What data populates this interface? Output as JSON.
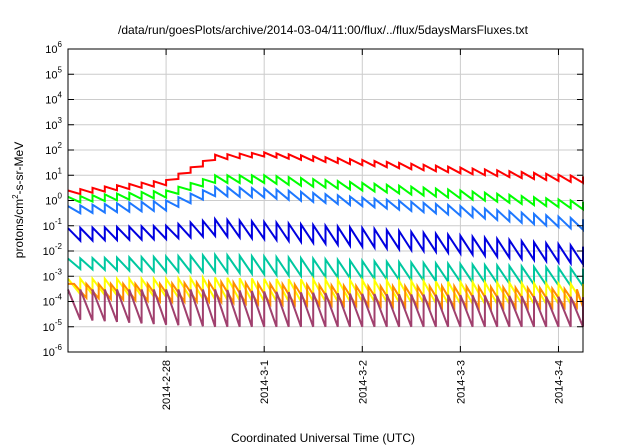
{
  "chart_data": {
    "type": "line",
    "title": "/data/run/goesPlots/archive/2014-03-04/11:00/flux/../flux/5daysMarsFluxes.txt",
    "xlabel": "Coordinated Universal Time (UTC)",
    "ylabel_parts": [
      "protons/cm",
      "2",
      "-s-sr-MeV"
    ],
    "y_scale": "log",
    "ylim": [
      1e-06,
      1000000.0
    ],
    "xlim": [
      "2014-02-27 00:00",
      "2014-03-04 06:00"
    ],
    "x_ticks": [
      {
        "label": "2014-2-28",
        "value": "2014-02-28"
      },
      {
        "label": "2014-3-1",
        "value": "2014-03-01"
      },
      {
        "label": "2014-3-2",
        "value": "2014-03-02"
      },
      {
        "label": "2014-3-3",
        "value": "2014-03-03"
      },
      {
        "label": "2014-3-4",
        "value": "2014-03-04"
      }
    ],
    "y_ticks": [
      {
        "base": "10",
        "exp": "-6",
        "value": 1e-06
      },
      {
        "base": "10",
        "exp": "-5",
        "value": 1e-05
      },
      {
        "base": "10",
        "exp": "-4",
        "value": 0.0001
      },
      {
        "base": "10",
        "exp": "-3",
        "value": 0.001
      },
      {
        "base": "10",
        "exp": "-2",
        "value": 0.01
      },
      {
        "base": "10",
        "exp": "-1",
        "value": 0.1
      },
      {
        "base": "10",
        "exp": "0",
        "value": 1
      },
      {
        "base": "10",
        "exp": "1",
        "value": 10
      },
      {
        "base": "10",
        "exp": "2",
        "value": 100
      },
      {
        "base": "10",
        "exp": "3",
        "value": 1000
      },
      {
        "base": "10",
        "exp": "4",
        "value": 10000
      },
      {
        "base": "10",
        "exp": "5",
        "value": 100000
      },
      {
        "base": "10",
        "exp": "6",
        "value": 1000000
      }
    ],
    "grid": true,
    "legend": "none",
    "series": [
      {
        "color": "#ff0000",
        "sawtooth_start": "2014-02-27 00:00",
        "sawtooth_period_hours": 3,
        "envelope": [
          [
            "2014-02-27 00:00",
            1.6,
            2.5
          ],
          [
            "2014-02-28 00:00",
            4,
            6.5
          ],
          [
            "2014-02-28 12:00",
            40,
            65
          ],
          [
            "2014-03-01 00:00",
            55,
            80
          ],
          [
            "2014-03-02 00:00",
            25,
            40
          ],
          [
            "2014-03-03 00:00",
            12,
            20
          ],
          [
            "2014-03-04 06:00",
            5,
            9
          ]
        ]
      },
      {
        "color": "#00ff00",
        "sawtooth_start": "2014-02-27 00:00",
        "sawtooth_period_hours": 3,
        "envelope": [
          [
            "2014-02-27 00:00",
            0.8,
            1.4
          ],
          [
            "2014-02-28 00:00",
            1.3,
            2.5
          ],
          [
            "2014-02-28 12:00",
            5,
            10
          ],
          [
            "2014-03-01 00:00",
            5,
            10
          ],
          [
            "2014-03-02 00:00",
            2.5,
            5
          ],
          [
            "2014-03-03 00:00",
            1.2,
            2.5
          ],
          [
            "2014-03-04 06:00",
            0.45,
            0.9
          ]
        ]
      },
      {
        "color": "#1e78ff",
        "sawtooth_start": "2014-02-27 00:00",
        "sawtooth_period_hours": 3,
        "envelope": [
          [
            "2014-02-27 00:00",
            0.3,
            0.6
          ],
          [
            "2014-02-28 00:00",
            0.4,
            1.0
          ],
          [
            "2014-02-28 12:00",
            1.5,
            3.5
          ],
          [
            "2014-03-01 00:00",
            1.3,
            3.0
          ],
          [
            "2014-03-02 00:00",
            0.6,
            1.3
          ],
          [
            "2014-03-03 00:00",
            0.25,
            0.6
          ],
          [
            "2014-03-04 06:00",
            0.07,
            0.18
          ]
        ]
      },
      {
        "color": "#0000e0",
        "sawtooth_start": "2014-02-27 00:00",
        "sawtooth_period_hours": 3,
        "envelope": [
          [
            "2014-02-27 00:00",
            0.025,
            0.08
          ],
          [
            "2014-02-28 00:00",
            0.03,
            0.1
          ],
          [
            "2014-02-28 12:00",
            0.04,
            0.18
          ],
          [
            "2014-03-01 00:00",
            0.03,
            0.14
          ],
          [
            "2014-03-02 00:00",
            0.015,
            0.08
          ],
          [
            "2014-03-03 00:00",
            0.008,
            0.04
          ],
          [
            "2014-03-04 06:00",
            0.003,
            0.015
          ]
        ]
      },
      {
        "color": "#00c8a0",
        "sawtooth_start": "2014-02-27 00:00",
        "sawtooth_period_hours": 3,
        "envelope": [
          [
            "2014-02-27 00:00",
            0.002,
            0.005
          ],
          [
            "2014-02-28 00:00",
            0.0015,
            0.006
          ],
          [
            "2014-02-28 12:00",
            0.0015,
            0.007
          ],
          [
            "2014-03-01 00:00",
            0.0012,
            0.006
          ],
          [
            "2014-03-02 00:00",
            0.0008,
            0.004
          ],
          [
            "2014-03-03 00:00",
            0.0006,
            0.003
          ],
          [
            "2014-03-04 06:00",
            0.0004,
            0.002
          ]
        ]
      },
      {
        "color": "#ffff00",
        "sawtooth_start": "2014-02-27 00:00",
        "sawtooth_period_hours": 3,
        "envelope": [
          [
            "2014-02-27 00:00",
            0.0002,
            0.0008
          ],
          [
            "2014-02-28 00:00",
            0.00015,
            0.0008
          ],
          [
            "2014-02-28 12:00",
            0.00012,
            0.0009
          ],
          [
            "2014-03-01 00:00",
            0.0001,
            0.0008
          ],
          [
            "2014-03-02 00:00",
            0.0001,
            0.0007
          ],
          [
            "2014-03-03 00:00",
            8e-05,
            0.0006
          ],
          [
            "2014-03-04 06:00",
            8e-05,
            0.0005
          ]
        ]
      },
      {
        "color": "#ff8c00",
        "sawtooth_start": "2014-02-27 01:30",
        "sawtooth_period_hours": 3,
        "envelope": [
          [
            "2014-02-27 00:00",
            0.00015,
            0.0005
          ],
          [
            "2014-02-28 00:00",
            0.0001,
            0.0005
          ],
          [
            "2014-02-28 12:00",
            0.0001,
            0.0006
          ],
          [
            "2014-03-01 00:00",
            8e-05,
            0.0005
          ],
          [
            "2014-03-02 00:00",
            7e-05,
            0.0004
          ],
          [
            "2014-03-03 00:00",
            6e-05,
            0.0004
          ],
          [
            "2014-03-04 06:00",
            6e-05,
            0.0003
          ]
        ]
      },
      {
        "color": "#a0406e",
        "sawtooth_start": "2014-02-27 00:00",
        "sawtooth_period_hours": 3,
        "envelope": [
          [
            "2014-02-27 00:00",
            2e-05,
            0.0003
          ],
          [
            "2014-02-28 00:00",
            1.2e-05,
            0.0003
          ],
          [
            "2014-02-28 12:00",
            1e-05,
            0.0003
          ],
          [
            "2014-03-01 00:00",
            1e-05,
            0.00025
          ],
          [
            "2014-03-02 00:00",
            1e-05,
            0.0002
          ],
          [
            "2014-03-03 00:00",
            1e-05,
            0.00018
          ],
          [
            "2014-03-04 06:00",
            1e-05,
            0.00015
          ]
        ]
      }
    ]
  }
}
